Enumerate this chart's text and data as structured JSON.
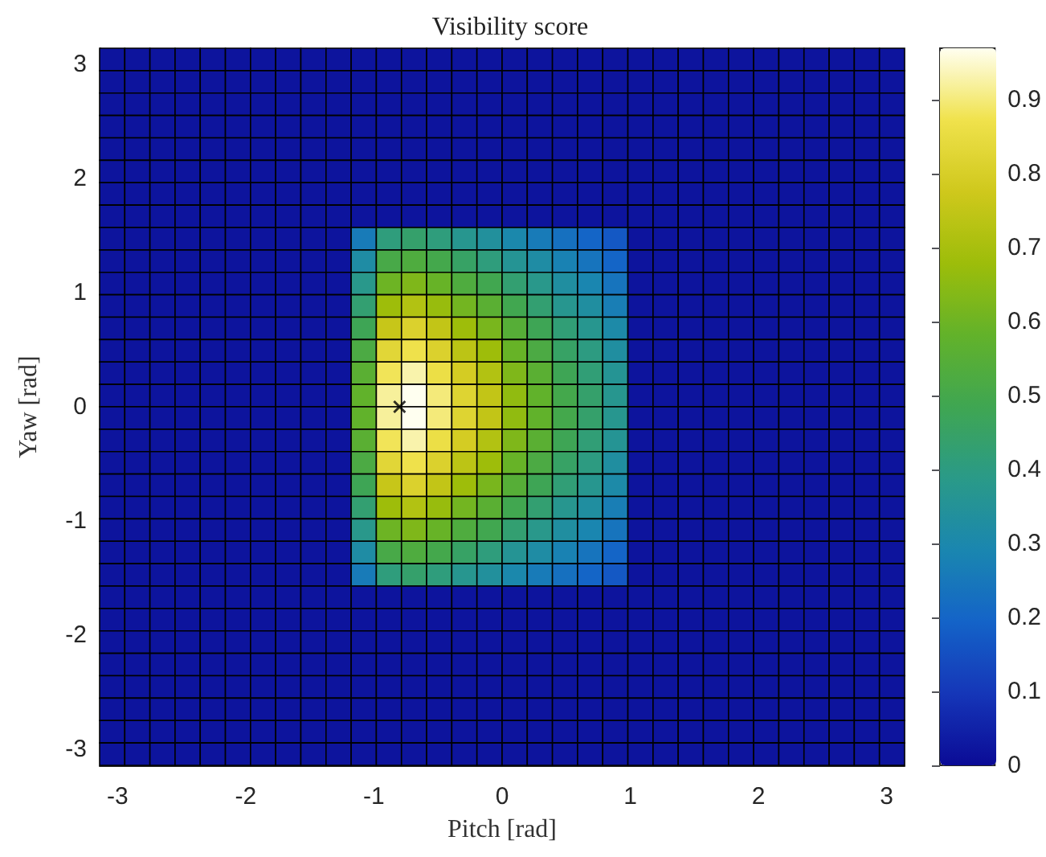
{
  "chart_data": {
    "type": "heatmap",
    "title": "Visibility score",
    "xlabel": "Pitch [rad]",
    "ylabel": "Yaw [rad]",
    "series": [
      {
        "type": "scatter",
        "x": [
          -0.8
        ],
        "values": [
          0
        ],
        "color": "#000000",
        "marker": "cross"
      }
    ],
    "xlim": [
      -3.14,
      3.14
    ],
    "ylim": [
      -3.14,
      3.14
    ],
    "xticks": [
      -3,
      -2,
      -1,
      0,
      1,
      2,
      3
    ],
    "yticks": [
      -3,
      -2,
      -1,
      0,
      1,
      2,
      3
    ],
    "clim": [
      0,
      0.97
    ],
    "cticks": [
      0,
      0.1,
      0.2,
      0.3,
      0.4,
      0.5,
      0.6,
      0.7,
      0.8,
      0.9
    ],
    "cells": [
      [
        0.02,
        0.02,
        0.02,
        0.02,
        0.02,
        0.02,
        0.02,
        0.02,
        0.02,
        0.02,
        0.02,
        0.02,
        0.02,
        0.02,
        0.02,
        0.02,
        0.02,
        0.02,
        0.02,
        0.02,
        0.02,
        0.02,
        0.02,
        0.02,
        0.02,
        0.02,
        0.02,
        0.02,
        0.02,
        0.02,
        0.02,
        0.02
      ],
      [
        0.02,
        0.02,
        0.02,
        0.02,
        0.02,
        0.02,
        0.02,
        0.02,
        0.02,
        0.02,
        0.02,
        0.02,
        0.02,
        0.02,
        0.02,
        0.02,
        0.02,
        0.02,
        0.02,
        0.02,
        0.02,
        0.02,
        0.02,
        0.02,
        0.02,
        0.02,
        0.02,
        0.02,
        0.02,
        0.02,
        0.02,
        0.02
      ],
      [
        0.02,
        0.02,
        0.02,
        0.02,
        0.02,
        0.02,
        0.02,
        0.02,
        0.02,
        0.02,
        0.02,
        0.02,
        0.02,
        0.02,
        0.02,
        0.02,
        0.02,
        0.02,
        0.02,
        0.02,
        0.02,
        0.02,
        0.02,
        0.02,
        0.02,
        0.02,
        0.02,
        0.02,
        0.02,
        0.02,
        0.02,
        0.02
      ],
      [
        0.02,
        0.02,
        0.02,
        0.02,
        0.02,
        0.02,
        0.02,
        0.02,
        0.02,
        0.02,
        0.02,
        0.02,
        0.02,
        0.02,
        0.02,
        0.02,
        0.02,
        0.02,
        0.02,
        0.02,
        0.02,
        0.02,
        0.02,
        0.02,
        0.02,
        0.02,
        0.02,
        0.02,
        0.02,
        0.02,
        0.02,
        0.02
      ],
      [
        0.02,
        0.02,
        0.02,
        0.02,
        0.02,
        0.02,
        0.02,
        0.02,
        0.02,
        0.02,
        0.02,
        0.02,
        0.02,
        0.02,
        0.02,
        0.02,
        0.02,
        0.02,
        0.02,
        0.02,
        0.02,
        0.02,
        0.02,
        0.02,
        0.02,
        0.02,
        0.02,
        0.02,
        0.02,
        0.02,
        0.02,
        0.02
      ],
      [
        0.02,
        0.02,
        0.02,
        0.02,
        0.02,
        0.02,
        0.02,
        0.02,
        0.02,
        0.02,
        0.02,
        0.02,
        0.02,
        0.02,
        0.02,
        0.02,
        0.02,
        0.02,
        0.02,
        0.02,
        0.02,
        0.02,
        0.02,
        0.02,
        0.02,
        0.02,
        0.02,
        0.02,
        0.02,
        0.02,
        0.02,
        0.02
      ],
      [
        0.02,
        0.02,
        0.02,
        0.02,
        0.02,
        0.02,
        0.02,
        0.02,
        0.02,
        0.02,
        0.02,
        0.02,
        0.02,
        0.02,
        0.02,
        0.02,
        0.02,
        0.02,
        0.02,
        0.02,
        0.02,
        0.02,
        0.02,
        0.02,
        0.02,
        0.02,
        0.02,
        0.02,
        0.02,
        0.02,
        0.02,
        0.02
      ],
      [
        0.02,
        0.02,
        0.02,
        0.02,
        0.02,
        0.02,
        0.02,
        0.02,
        0.02,
        0.02,
        0.02,
        0.02,
        0.02,
        0.02,
        0.02,
        0.02,
        0.02,
        0.02,
        0.02,
        0.02,
        0.02,
        0.02,
        0.02,
        0.02,
        0.02,
        0.02,
        0.02,
        0.02,
        0.02,
        0.02,
        0.02,
        0.02
      ],
      [
        0.02,
        0.02,
        0.02,
        0.02,
        0.02,
        0.02,
        0.02,
        0.02,
        0.02,
        0.02,
        0.26,
        0.41,
        0.44,
        0.41,
        0.37,
        0.34,
        0.3,
        0.26,
        0.23,
        0.2,
        0.17,
        0.02,
        0.02,
        0.02,
        0.02,
        0.02,
        0.02,
        0.02,
        0.02,
        0.02,
        0.02,
        0.02
      ],
      [
        0.02,
        0.02,
        0.02,
        0.02,
        0.02,
        0.02,
        0.02,
        0.02,
        0.02,
        0.02,
        0.32,
        0.51,
        0.53,
        0.5,
        0.45,
        0.41,
        0.36,
        0.32,
        0.28,
        0.24,
        0.2,
        0.02,
        0.02,
        0.02,
        0.02,
        0.02,
        0.02,
        0.02,
        0.02,
        0.02,
        0.02,
        0.02
      ],
      [
        0.02,
        0.02,
        0.02,
        0.02,
        0.02,
        0.02,
        0.02,
        0.02,
        0.02,
        0.02,
        0.38,
        0.6,
        0.63,
        0.59,
        0.53,
        0.49,
        0.43,
        0.38,
        0.33,
        0.29,
        0.24,
        0.02,
        0.02,
        0.02,
        0.02,
        0.02,
        0.02,
        0.02,
        0.02,
        0.02,
        0.02,
        0.02
      ],
      [
        0.02,
        0.02,
        0.02,
        0.02,
        0.02,
        0.02,
        0.02,
        0.02,
        0.02,
        0.02,
        0.43,
        0.68,
        0.72,
        0.67,
        0.61,
        0.56,
        0.49,
        0.43,
        0.37,
        0.33,
        0.27,
        0.02,
        0.02,
        0.02,
        0.02,
        0.02,
        0.02,
        0.02,
        0.02,
        0.02,
        0.02,
        0.02
      ],
      [
        0.02,
        0.02,
        0.02,
        0.02,
        0.02,
        0.02,
        0.02,
        0.02,
        0.02,
        0.02,
        0.48,
        0.76,
        0.81,
        0.75,
        0.68,
        0.62,
        0.55,
        0.48,
        0.42,
        0.37,
        0.31,
        0.02,
        0.02,
        0.02,
        0.02,
        0.02,
        0.02,
        0.02,
        0.02,
        0.02,
        0.02,
        0.02
      ],
      [
        0.02,
        0.02,
        0.02,
        0.02,
        0.02,
        0.02,
        0.02,
        0.02,
        0.02,
        0.02,
        0.52,
        0.83,
        0.87,
        0.81,
        0.74,
        0.68,
        0.59,
        0.52,
        0.45,
        0.4,
        0.33,
        0.02,
        0.02,
        0.02,
        0.02,
        0.02,
        0.02,
        0.02,
        0.02,
        0.02,
        0.02,
        0.02
      ],
      [
        0.02,
        0.02,
        0.02,
        0.02,
        0.02,
        0.02,
        0.02,
        0.02,
        0.02,
        0.02,
        0.56,
        0.88,
        0.93,
        0.86,
        0.79,
        0.72,
        0.63,
        0.56,
        0.48,
        0.42,
        0.36,
        0.02,
        0.02,
        0.02,
        0.02,
        0.02,
        0.02,
        0.02,
        0.02,
        0.02,
        0.02,
        0.02
      ],
      [
        0.02,
        0.02,
        0.02,
        0.02,
        0.02,
        0.02,
        0.02,
        0.02,
        0.02,
        0.02,
        0.58,
        0.92,
        0.97,
        0.9,
        0.82,
        0.75,
        0.66,
        0.58,
        0.5,
        0.44,
        0.37,
        0.02,
        0.02,
        0.02,
        0.02,
        0.02,
        0.02,
        0.02,
        0.02,
        0.02,
        0.02,
        0.02
      ],
      [
        0.02,
        0.02,
        0.02,
        0.02,
        0.02,
        0.02,
        0.02,
        0.02,
        0.02,
        0.02,
        0.58,
        0.92,
        0.97,
        0.9,
        0.82,
        0.75,
        0.66,
        0.58,
        0.5,
        0.44,
        0.37,
        0.02,
        0.02,
        0.02,
        0.02,
        0.02,
        0.02,
        0.02,
        0.02,
        0.02,
        0.02,
        0.02
      ],
      [
        0.02,
        0.02,
        0.02,
        0.02,
        0.02,
        0.02,
        0.02,
        0.02,
        0.02,
        0.02,
        0.56,
        0.88,
        0.93,
        0.86,
        0.79,
        0.72,
        0.63,
        0.56,
        0.48,
        0.42,
        0.36,
        0.02,
        0.02,
        0.02,
        0.02,
        0.02,
        0.02,
        0.02,
        0.02,
        0.02,
        0.02,
        0.02
      ],
      [
        0.02,
        0.02,
        0.02,
        0.02,
        0.02,
        0.02,
        0.02,
        0.02,
        0.02,
        0.02,
        0.52,
        0.83,
        0.87,
        0.81,
        0.74,
        0.68,
        0.59,
        0.52,
        0.45,
        0.4,
        0.33,
        0.02,
        0.02,
        0.02,
        0.02,
        0.02,
        0.02,
        0.02,
        0.02,
        0.02,
        0.02,
        0.02
      ],
      [
        0.02,
        0.02,
        0.02,
        0.02,
        0.02,
        0.02,
        0.02,
        0.02,
        0.02,
        0.02,
        0.48,
        0.76,
        0.81,
        0.75,
        0.68,
        0.62,
        0.55,
        0.48,
        0.42,
        0.37,
        0.31,
        0.02,
        0.02,
        0.02,
        0.02,
        0.02,
        0.02,
        0.02,
        0.02,
        0.02,
        0.02,
        0.02
      ],
      [
        0.02,
        0.02,
        0.02,
        0.02,
        0.02,
        0.02,
        0.02,
        0.02,
        0.02,
        0.02,
        0.43,
        0.68,
        0.72,
        0.67,
        0.61,
        0.56,
        0.49,
        0.43,
        0.37,
        0.33,
        0.27,
        0.02,
        0.02,
        0.02,
        0.02,
        0.02,
        0.02,
        0.02,
        0.02,
        0.02,
        0.02,
        0.02
      ],
      [
        0.02,
        0.02,
        0.02,
        0.02,
        0.02,
        0.02,
        0.02,
        0.02,
        0.02,
        0.02,
        0.38,
        0.6,
        0.63,
        0.59,
        0.53,
        0.49,
        0.43,
        0.38,
        0.33,
        0.29,
        0.24,
        0.02,
        0.02,
        0.02,
        0.02,
        0.02,
        0.02,
        0.02,
        0.02,
        0.02,
        0.02,
        0.02
      ],
      [
        0.02,
        0.02,
        0.02,
        0.02,
        0.02,
        0.02,
        0.02,
        0.02,
        0.02,
        0.02,
        0.32,
        0.51,
        0.53,
        0.5,
        0.45,
        0.41,
        0.36,
        0.32,
        0.28,
        0.24,
        0.2,
        0.02,
        0.02,
        0.02,
        0.02,
        0.02,
        0.02,
        0.02,
        0.02,
        0.02,
        0.02,
        0.02
      ],
      [
        0.02,
        0.02,
        0.02,
        0.02,
        0.02,
        0.02,
        0.02,
        0.02,
        0.02,
        0.02,
        0.26,
        0.41,
        0.44,
        0.41,
        0.37,
        0.34,
        0.3,
        0.26,
        0.23,
        0.2,
        0.17,
        0.02,
        0.02,
        0.02,
        0.02,
        0.02,
        0.02,
        0.02,
        0.02,
        0.02,
        0.02,
        0.02
      ],
      [
        0.02,
        0.02,
        0.02,
        0.02,
        0.02,
        0.02,
        0.02,
        0.02,
        0.02,
        0.02,
        0.02,
        0.02,
        0.02,
        0.02,
        0.02,
        0.02,
        0.02,
        0.02,
        0.02,
        0.02,
        0.02,
        0.02,
        0.02,
        0.02,
        0.02,
        0.02,
        0.02,
        0.02,
        0.02,
        0.02,
        0.02,
        0.02
      ],
      [
        0.02,
        0.02,
        0.02,
        0.02,
        0.02,
        0.02,
        0.02,
        0.02,
        0.02,
        0.02,
        0.02,
        0.02,
        0.02,
        0.02,
        0.02,
        0.02,
        0.02,
        0.02,
        0.02,
        0.02,
        0.02,
        0.02,
        0.02,
        0.02,
        0.02,
        0.02,
        0.02,
        0.02,
        0.02,
        0.02,
        0.02,
        0.02
      ],
      [
        0.02,
        0.02,
        0.02,
        0.02,
        0.02,
        0.02,
        0.02,
        0.02,
        0.02,
        0.02,
        0.02,
        0.02,
        0.02,
        0.02,
        0.02,
        0.02,
        0.02,
        0.02,
        0.02,
        0.02,
        0.02,
        0.02,
        0.02,
        0.02,
        0.02,
        0.02,
        0.02,
        0.02,
        0.02,
        0.02,
        0.02,
        0.02
      ],
      [
        0.02,
        0.02,
        0.02,
        0.02,
        0.02,
        0.02,
        0.02,
        0.02,
        0.02,
        0.02,
        0.02,
        0.02,
        0.02,
        0.02,
        0.02,
        0.02,
        0.02,
        0.02,
        0.02,
        0.02,
        0.02,
        0.02,
        0.02,
        0.02,
        0.02,
        0.02,
        0.02,
        0.02,
        0.02,
        0.02,
        0.02,
        0.02
      ],
      [
        0.02,
        0.02,
        0.02,
        0.02,
        0.02,
        0.02,
        0.02,
        0.02,
        0.02,
        0.02,
        0.02,
        0.02,
        0.02,
        0.02,
        0.02,
        0.02,
        0.02,
        0.02,
        0.02,
        0.02,
        0.02,
        0.02,
        0.02,
        0.02,
        0.02,
        0.02,
        0.02,
        0.02,
        0.02,
        0.02,
        0.02,
        0.02
      ],
      [
        0.02,
        0.02,
        0.02,
        0.02,
        0.02,
        0.02,
        0.02,
        0.02,
        0.02,
        0.02,
        0.02,
        0.02,
        0.02,
        0.02,
        0.02,
        0.02,
        0.02,
        0.02,
        0.02,
        0.02,
        0.02,
        0.02,
        0.02,
        0.02,
        0.02,
        0.02,
        0.02,
        0.02,
        0.02,
        0.02,
        0.02,
        0.02
      ],
      [
        0.02,
        0.02,
        0.02,
        0.02,
        0.02,
        0.02,
        0.02,
        0.02,
        0.02,
        0.02,
        0.02,
        0.02,
        0.02,
        0.02,
        0.02,
        0.02,
        0.02,
        0.02,
        0.02,
        0.02,
        0.02,
        0.02,
        0.02,
        0.02,
        0.02,
        0.02,
        0.02,
        0.02,
        0.02,
        0.02,
        0.02,
        0.02
      ],
      [
        0.02,
        0.02,
        0.02,
        0.02,
        0.02,
        0.02,
        0.02,
        0.02,
        0.02,
        0.02,
        0.02,
        0.02,
        0.02,
        0.02,
        0.02,
        0.02,
        0.02,
        0.02,
        0.02,
        0.02,
        0.02,
        0.02,
        0.02,
        0.02,
        0.02,
        0.02,
        0.02,
        0.02,
        0.02,
        0.02,
        0.02,
        0.02
      ]
    ]
  }
}
